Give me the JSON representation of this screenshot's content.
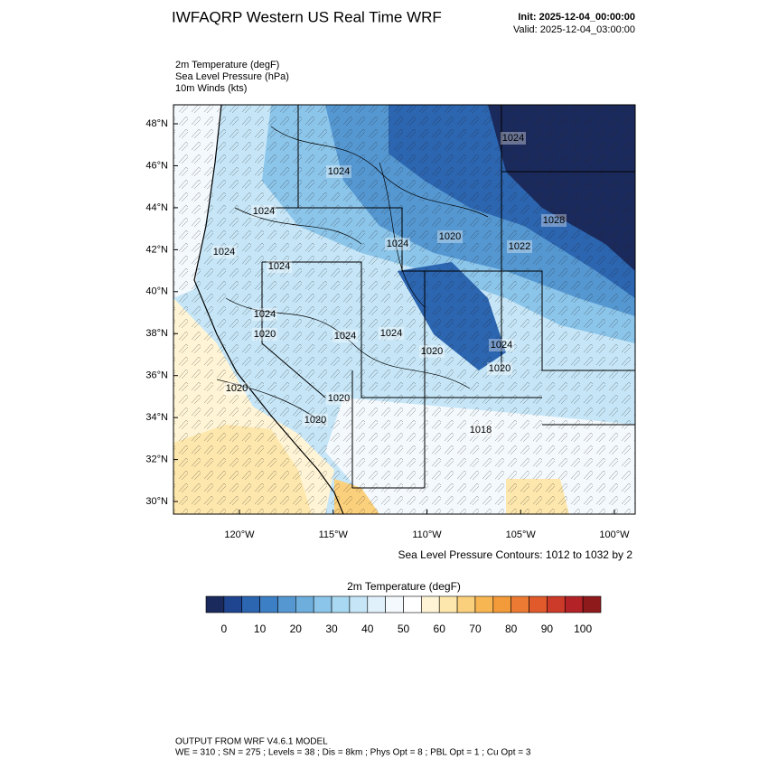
{
  "header": {
    "title": "IWFAQRP Western US Real Time WRF",
    "init": "Init: 2025-12-04_00:00:00",
    "valid": "Valid: 2025-12-04_03:00:00"
  },
  "fields": [
    "2m Temperature   (degF)",
    "Sea Level Pressure   (hPa)",
    "10m Winds   (kts)"
  ],
  "map": {
    "lat_labels": [
      "48°N",
      "46°N",
      "44°N",
      "42°N",
      "40°N",
      "38°N",
      "36°N",
      "34°N",
      "32°N",
      "30°N"
    ],
    "lon_labels": [
      "120°W",
      "115°W",
      "110°W",
      "105°W",
      "100°W"
    ],
    "contour_labels": [
      "1024",
      "1024",
      "1024",
      "1028",
      "1024",
      "1020",
      "1022",
      "1024",
      "1024",
      "1024",
      "1020",
      "1024",
      "1024",
      "1020",
      "1024",
      "1020",
      "1020",
      "1020",
      "1020",
      "1018"
    ],
    "contour_note": "Sea Level Pressure Contours: 1012 to 1032 by 2"
  },
  "colorbar": {
    "title": "2m Temperature  (degF)",
    "colors": [
      "#1b2a5c",
      "#1f4590",
      "#2c65b0",
      "#3d7fc4",
      "#5597d1",
      "#6eaedd",
      "#8cc5ea",
      "#a8d8f2",
      "#c6e6f7",
      "#e1f1fb",
      "#f4f9fd",
      "#ffffff",
      "#fff5d6",
      "#fde7ad",
      "#fbd07c",
      "#f8b652",
      "#f39a3a",
      "#ec7a32",
      "#e05a2c",
      "#cc3a29",
      "#b22226",
      "#8f1a1c"
    ],
    "labels": [
      "0",
      "10",
      "20",
      "30",
      "40",
      "50",
      "60",
      "70",
      "80",
      "90",
      "100"
    ]
  },
  "footer": [
    "OUTPUT FROM WRF V4.6.1 MODEL",
    "WE = 310 ; SN = 275 ; Levels = 38 ; Dis = 8km ; Phys Opt = 8 ; PBL Opt = 1 ; Cu Opt = 3"
  ]
}
